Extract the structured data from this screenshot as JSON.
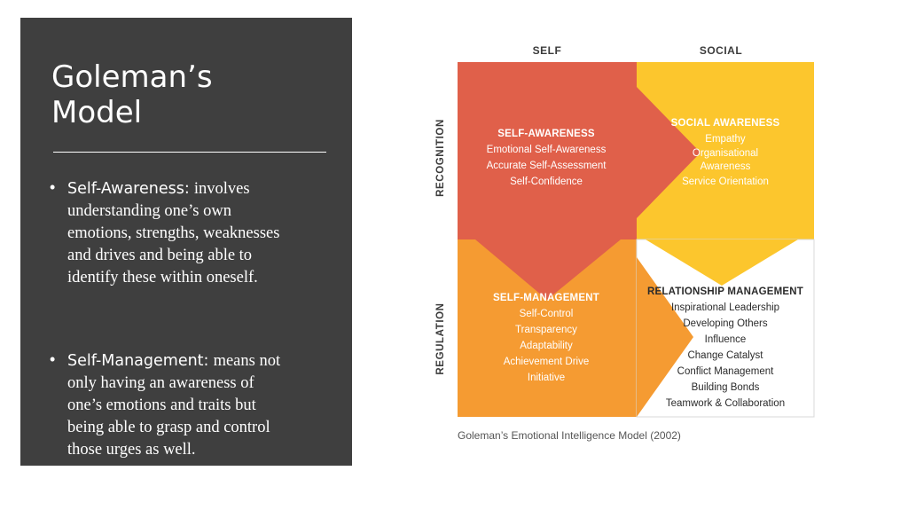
{
  "slide": {
    "title_line1": "Goleman’s",
    "title_line2": "Model",
    "bullets": [
      {
        "term": "Self-Awareness:",
        "desc_lines": [
          "involves",
          "understanding one’s own",
          "emotions, strengths, weaknesses",
          "and drives and being able to",
          "identify these within oneself."
        ]
      },
      {
        "term": "Self-Management:",
        "desc_lines": [
          "means not",
          "only having an awareness of",
          "one’s emotions and traits but",
          "being able to grasp and control",
          "those urges as well."
        ]
      }
    ]
  },
  "diagram": {
    "col_self": "SELF",
    "col_social": "SOCIAL",
    "row_recognition": "RECOGNITION",
    "row_regulation": "REGULATION",
    "quadrants": {
      "self_awareness": {
        "title": "SELF-AWARENESS",
        "items": [
          "Emotional Self-Awareness",
          "Accurate Self-Assessment",
          "Self-Confidence"
        ]
      },
      "social_awareness": {
        "title": "SOCIAL AWARENESS",
        "items": [
          "Empathy",
          "Organisational",
          "Awareness",
          "Service Orientation"
        ]
      },
      "self_management": {
        "title": "SELF-MANAGEMENT",
        "items": [
          "Self-Control",
          "Transparency",
          "Adaptability",
          "Achievement Drive",
          "Initiative"
        ]
      },
      "relationship_management": {
        "title": "RELATIONSHIP MANAGEMENT",
        "items": [
          "Inspirational Leadership",
          "Developing Others",
          "Influence",
          "Change Catalyst",
          "Conflict Management",
          "Building Bonds",
          "Teamwork & Collaboration"
        ]
      }
    },
    "caption": "Goleman’s Emotional Intelligence Model (2002)",
    "colors": {
      "red": "#e0604a",
      "yellow": "#fcc62d",
      "orange": "#f59b32",
      "white": "#ffffff",
      "text_dark": "#2b2b2b",
      "panel": "#3f3f3f"
    }
  }
}
